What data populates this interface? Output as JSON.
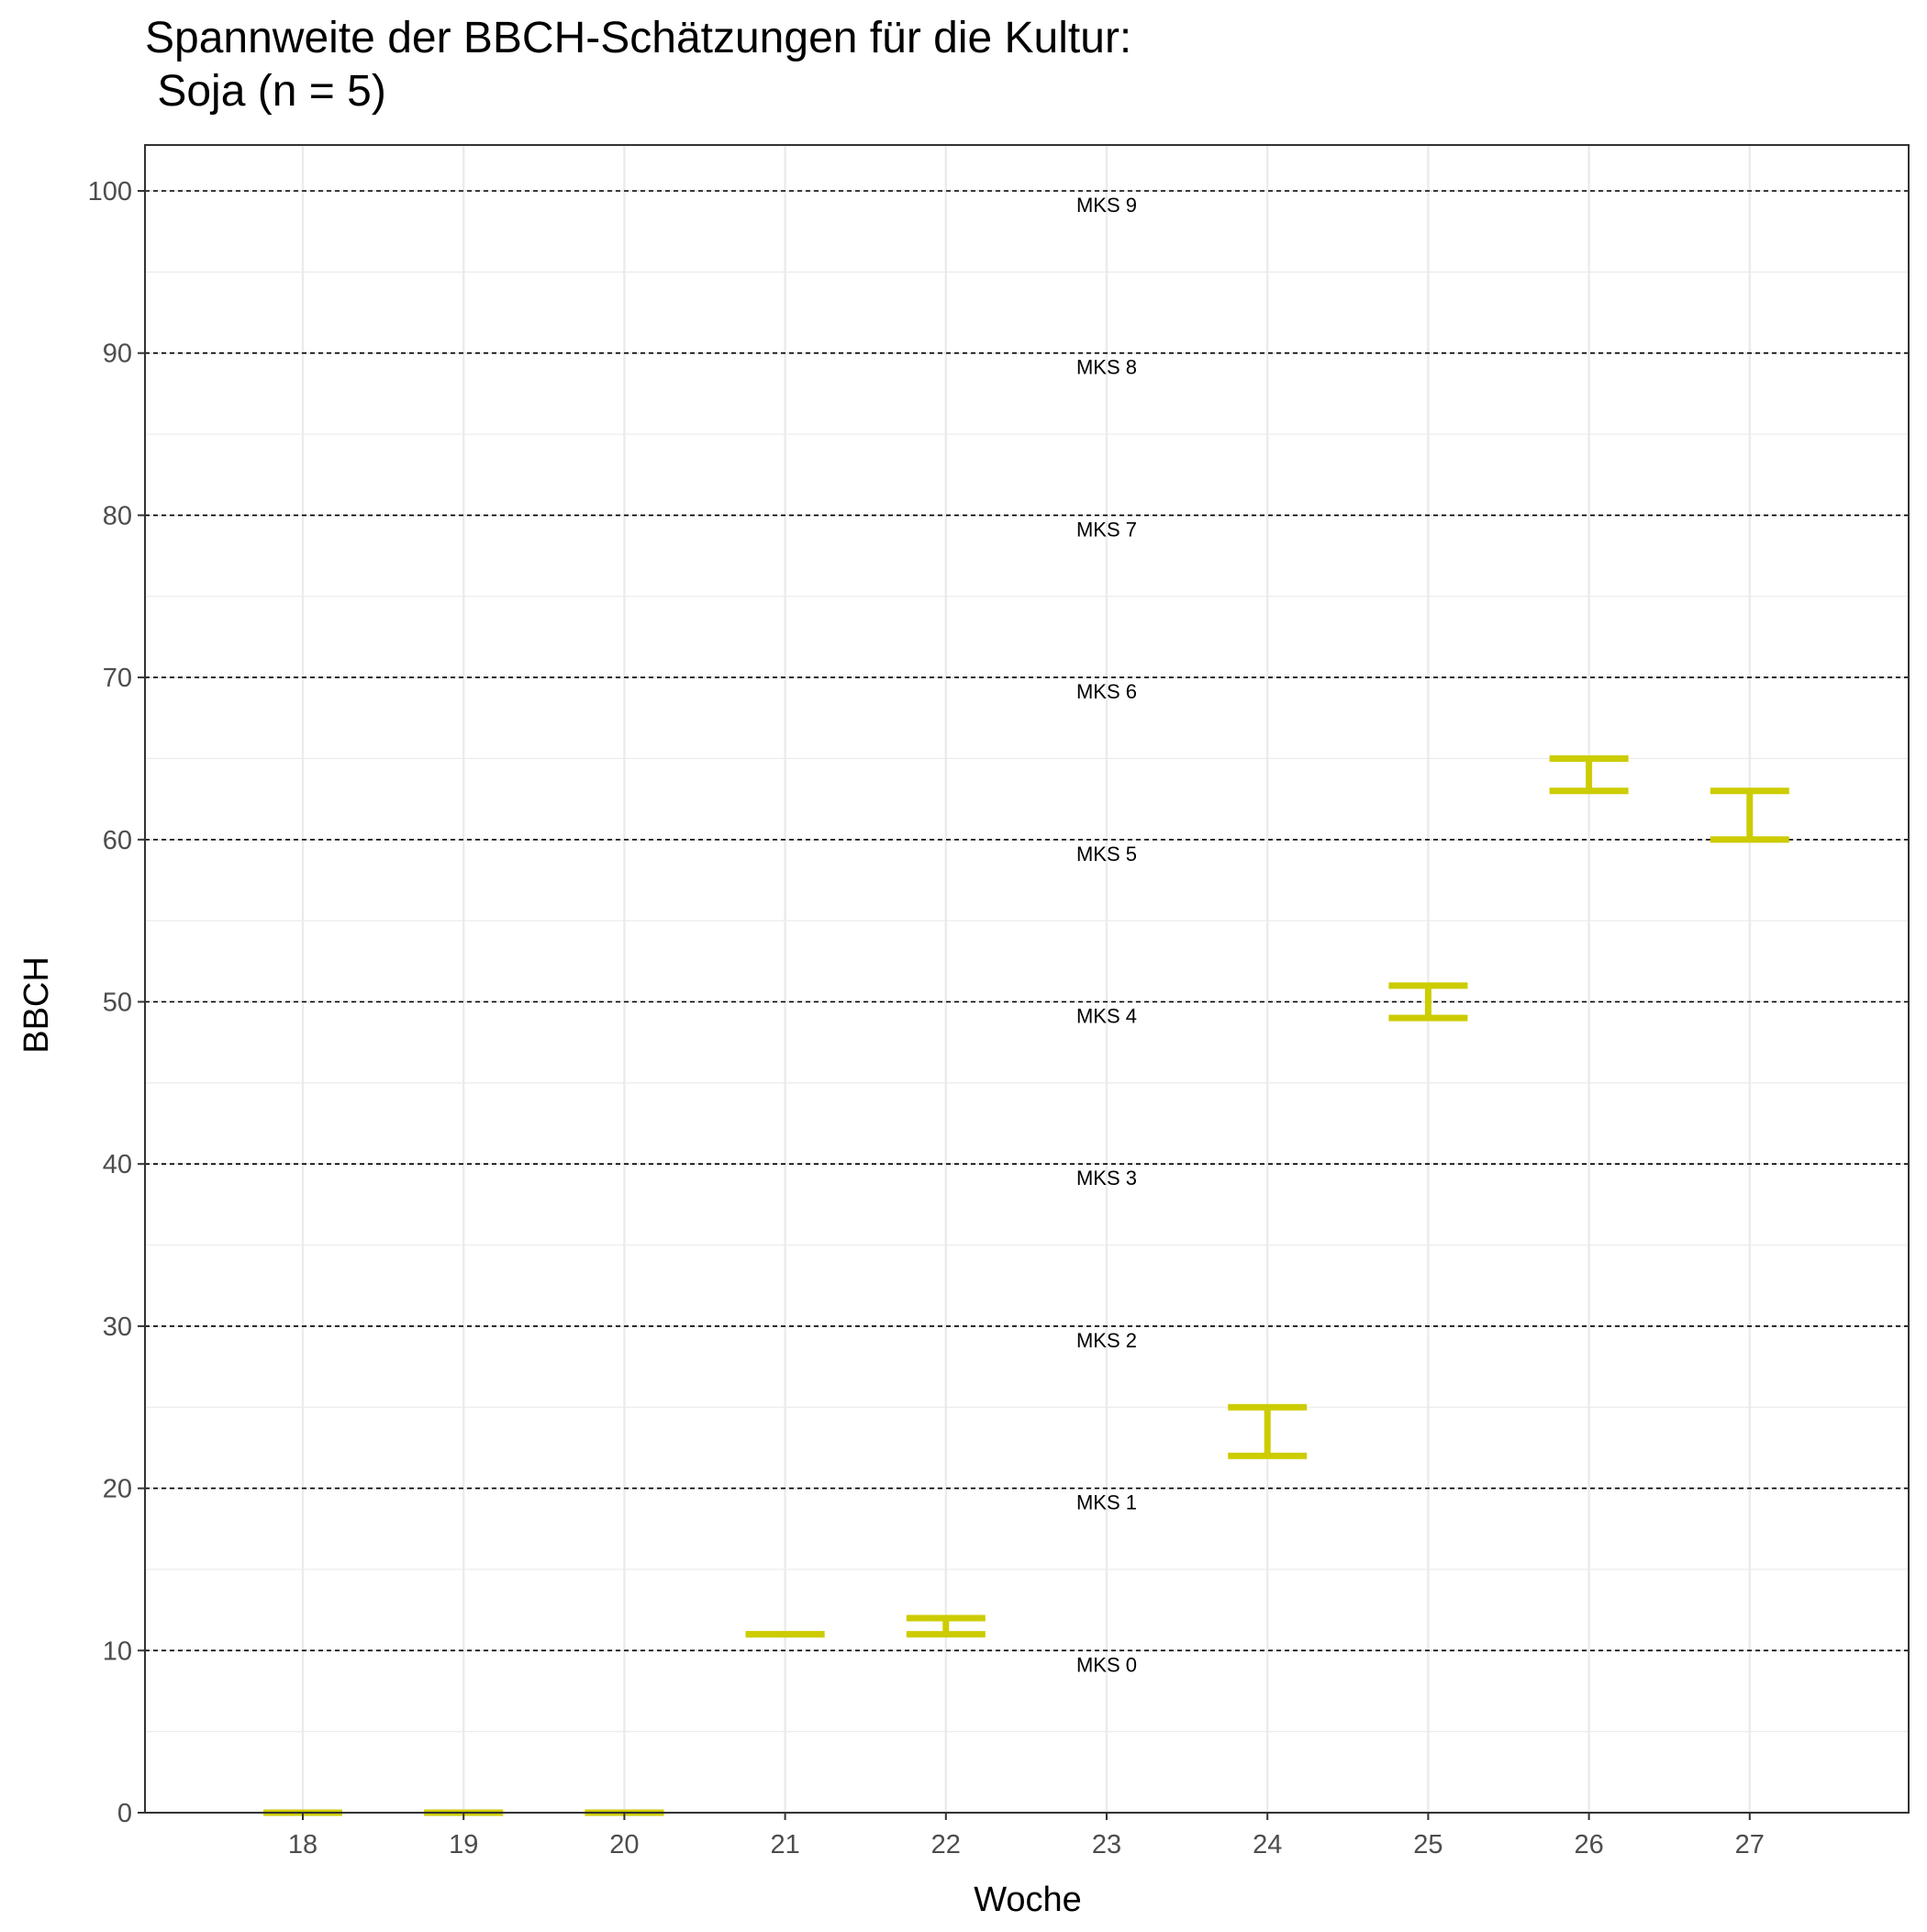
{
  "chart_data": {
    "type": "errorbar",
    "title": "Spannweite der BBCH-Schätzungen für die Kultur:",
    "subtitle": " Soja (n = 5)",
    "xlabel": "Woche",
    "ylabel": "BBCH",
    "categories": [
      "18",
      "19",
      "20",
      "21",
      "22",
      "23",
      "24",
      "25",
      "26",
      "27"
    ],
    "ylim": [
      0,
      103
    ],
    "yticks": [
      0,
      10,
      20,
      30,
      40,
      50,
      60,
      70,
      80,
      90,
      100
    ],
    "grid": true,
    "bar_color": "#CCCC00",
    "ranges": [
      {
        "week": "18",
        "min": 0,
        "max": 0
      },
      {
        "week": "19",
        "min": 0,
        "max": 0
      },
      {
        "week": "20",
        "min": 0,
        "max": 0
      },
      {
        "week": "21",
        "min": 11,
        "max": 11
      },
      {
        "week": "22",
        "min": 11,
        "max": 12
      },
      {
        "week": "24",
        "min": 22,
        "max": 25
      },
      {
        "week": "25",
        "min": 49,
        "max": 51
      },
      {
        "week": "26",
        "min": 63,
        "max": 65
      },
      {
        "week": "27",
        "min": 60,
        "max": 63
      }
    ],
    "reference_lines": [
      {
        "y": 10,
        "label": "MKS 0"
      },
      {
        "y": 20,
        "label": "MKS 1"
      },
      {
        "y": 30,
        "label": "MKS 2"
      },
      {
        "y": 40,
        "label": "MKS 3"
      },
      {
        "y": 50,
        "label": "MKS 4"
      },
      {
        "y": 60,
        "label": "MKS 5"
      },
      {
        "y": 70,
        "label": "MKS 6"
      },
      {
        "y": 80,
        "label": "MKS 7"
      },
      {
        "y": 90,
        "label": "MKS 8"
      },
      {
        "y": 100,
        "label": "MKS 9"
      }
    ],
    "reference_label_week": "23"
  }
}
